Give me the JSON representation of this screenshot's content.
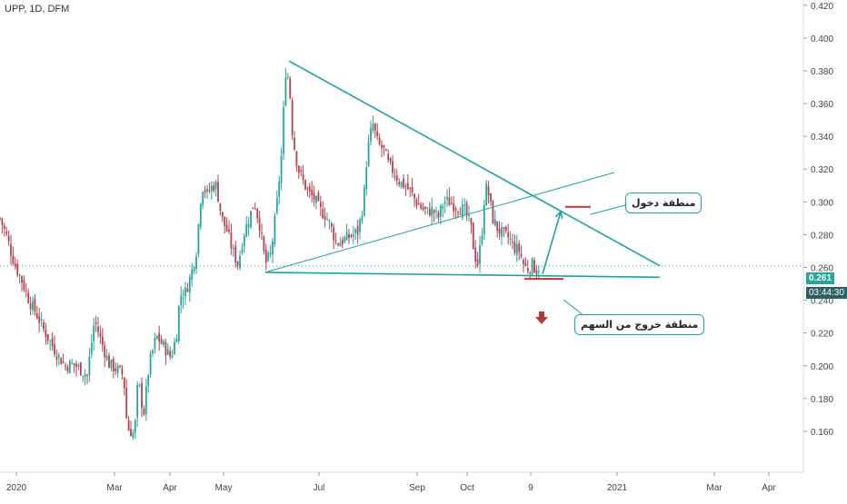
{
  "symbol": {
    "ticker": "UPP",
    "interval": "1D",
    "exchange": "DFM",
    "label": "UPP, 1D, DFM"
  },
  "price": {
    "last": "0.261",
    "countdown": "03:44:30"
  },
  "annotations": {
    "entry_zone": "منطقة دخول",
    "exit_zone": "منطقة خروج من السهم"
  },
  "colors": {
    "up": "#26a69a",
    "down": "#b2424f",
    "trendline": "#1aa3a3",
    "level": "#b23a3a",
    "price_badge": "#26a69a",
    "countdown_badge": "#2a5f63"
  },
  "chart_data": {
    "type": "candlestick",
    "x_labels": [
      "2020",
      "Mar",
      "Apr",
      "May",
      "Jul",
      "Sep",
      "Oct",
      "9",
      "2021",
      "Mar",
      "Apr"
    ],
    "y_ticks": [
      "0.420",
      "0.400",
      "0.380",
      "0.360",
      "0.340",
      "0.320",
      "0.300",
      "0.280",
      "0.260",
      "0.240",
      "0.220",
      "0.200",
      "0.180",
      "0.160"
    ],
    "ylim": [
      0.145,
      0.421
    ],
    "price_line": 0.261,
    "close_path": [
      [
        0,
        0.29
      ],
      [
        8,
        0.278
      ],
      [
        16,
        0.262
      ],
      [
        24,
        0.252
      ],
      [
        32,
        0.24
      ],
      [
        40,
        0.232
      ],
      [
        48,
        0.222
      ],
      [
        56,
        0.214
      ],
      [
        64,
        0.206
      ],
      [
        72,
        0.2
      ],
      [
        80,
        0.201
      ],
      [
        88,
        0.198
      ],
      [
        96,
        0.194
      ],
      [
        104,
        0.228
      ],
      [
        112,
        0.214
      ],
      [
        120,
        0.201
      ],
      [
        128,
        0.198
      ],
      [
        136,
        0.194
      ],
      [
        140,
        0.162
      ],
      [
        148,
        0.158
      ],
      [
        152,
        0.192
      ],
      [
        158,
        0.17
      ],
      [
        164,
        0.2
      ],
      [
        172,
        0.218
      ],
      [
        180,
        0.212
      ],
      [
        188,
        0.205
      ],
      [
        194,
        0.218
      ],
      [
        198,
        0.243
      ],
      [
        204,
        0.245
      ],
      [
        210,
        0.255
      ],
      [
        216,
        0.27
      ],
      [
        222,
        0.31
      ],
      [
        228,
        0.305
      ],
      [
        234,
        0.31
      ],
      [
        238,
        0.31
      ],
      [
        244,
        0.29
      ],
      [
        250,
        0.282
      ],
      [
        256,
        0.27
      ],
      [
        262,
        0.262
      ],
      [
        268,
        0.28
      ],
      [
        274,
        0.29
      ],
      [
        280,
        0.3
      ],
      [
        286,
        0.285
      ],
      [
        292,
        0.262
      ],
      [
        298,
        0.268
      ],
      [
        304,
        0.295
      ],
      [
        310,
        0.33
      ],
      [
        314,
        0.38
      ],
      [
        318,
        0.375
      ],
      [
        322,
        0.34
      ],
      [
        328,
        0.32
      ],
      [
        334,
        0.312
      ],
      [
        340,
        0.305
      ],
      [
        346,
        0.302
      ],
      [
        352,
        0.295
      ],
      [
        358,
        0.292
      ],
      [
        364,
        0.285
      ],
      [
        370,
        0.275
      ],
      [
        376,
        0.276
      ],
      [
        382,
        0.278
      ],
      [
        388,
        0.28
      ],
      [
        394,
        0.282
      ],
      [
        400,
        0.3
      ],
      [
        404,
        0.33
      ],
      [
        410,
        0.348
      ],
      [
        416,
        0.335
      ],
      [
        422,
        0.332
      ],
      [
        428,
        0.322
      ],
      [
        434,
        0.318
      ],
      [
        440,
        0.312
      ],
      [
        446,
        0.31
      ],
      [
        452,
        0.306
      ],
      [
        458,
        0.3
      ],
      [
        464,
        0.296
      ],
      [
        470,
        0.294
      ],
      [
        476,
        0.295
      ],
      [
        482,
        0.29
      ],
      [
        488,
        0.3
      ],
      [
        494,
        0.3
      ],
      [
        500,
        0.298
      ],
      [
        506,
        0.296
      ],
      [
        512,
        0.294
      ],
      [
        518,
        0.285
      ],
      [
        522,
        0.268
      ],
      [
        526,
        0.262
      ],
      [
        530,
        0.28
      ],
      [
        534,
        0.31
      ],
      [
        538,
        0.304
      ],
      [
        542,
        0.29
      ],
      [
        548,
        0.283
      ],
      [
        554,
        0.28
      ],
      [
        560,
        0.278
      ],
      [
        566,
        0.272
      ],
      [
        572,
        0.27
      ],
      [
        576,
        0.262
      ],
      [
        580,
        0.259
      ],
      [
        586,
        0.262
      ],
      [
        590,
        0.258
      ],
      [
        594,
        0.261
      ]
    ],
    "trendlines": [
      {
        "name": "upper-descending",
        "from": [
          318,
          0.386
        ],
        "to": [
          726,
          0.261
        ]
      },
      {
        "name": "lower-support",
        "from": [
          292,
          0.257
        ],
        "to": [
          726,
          0.254
        ]
      },
      {
        "name": "rising",
        "from": [
          292,
          0.257
        ],
        "to": [
          676,
          0.318
        ]
      }
    ],
    "levels": [
      {
        "name": "entry-level",
        "from": [
          622,
          0.297
        ],
        "to": [
          650,
          0.297
        ]
      },
      {
        "name": "exit-level",
        "from": [
          577,
          0.253
        ],
        "to": [
          620,
          0.253
        ]
      }
    ],
    "arrows": [
      {
        "name": "entry-arrow",
        "from": [
          597,
          0.256
        ],
        "to": [
          617,
          0.294
        ]
      }
    ]
  }
}
